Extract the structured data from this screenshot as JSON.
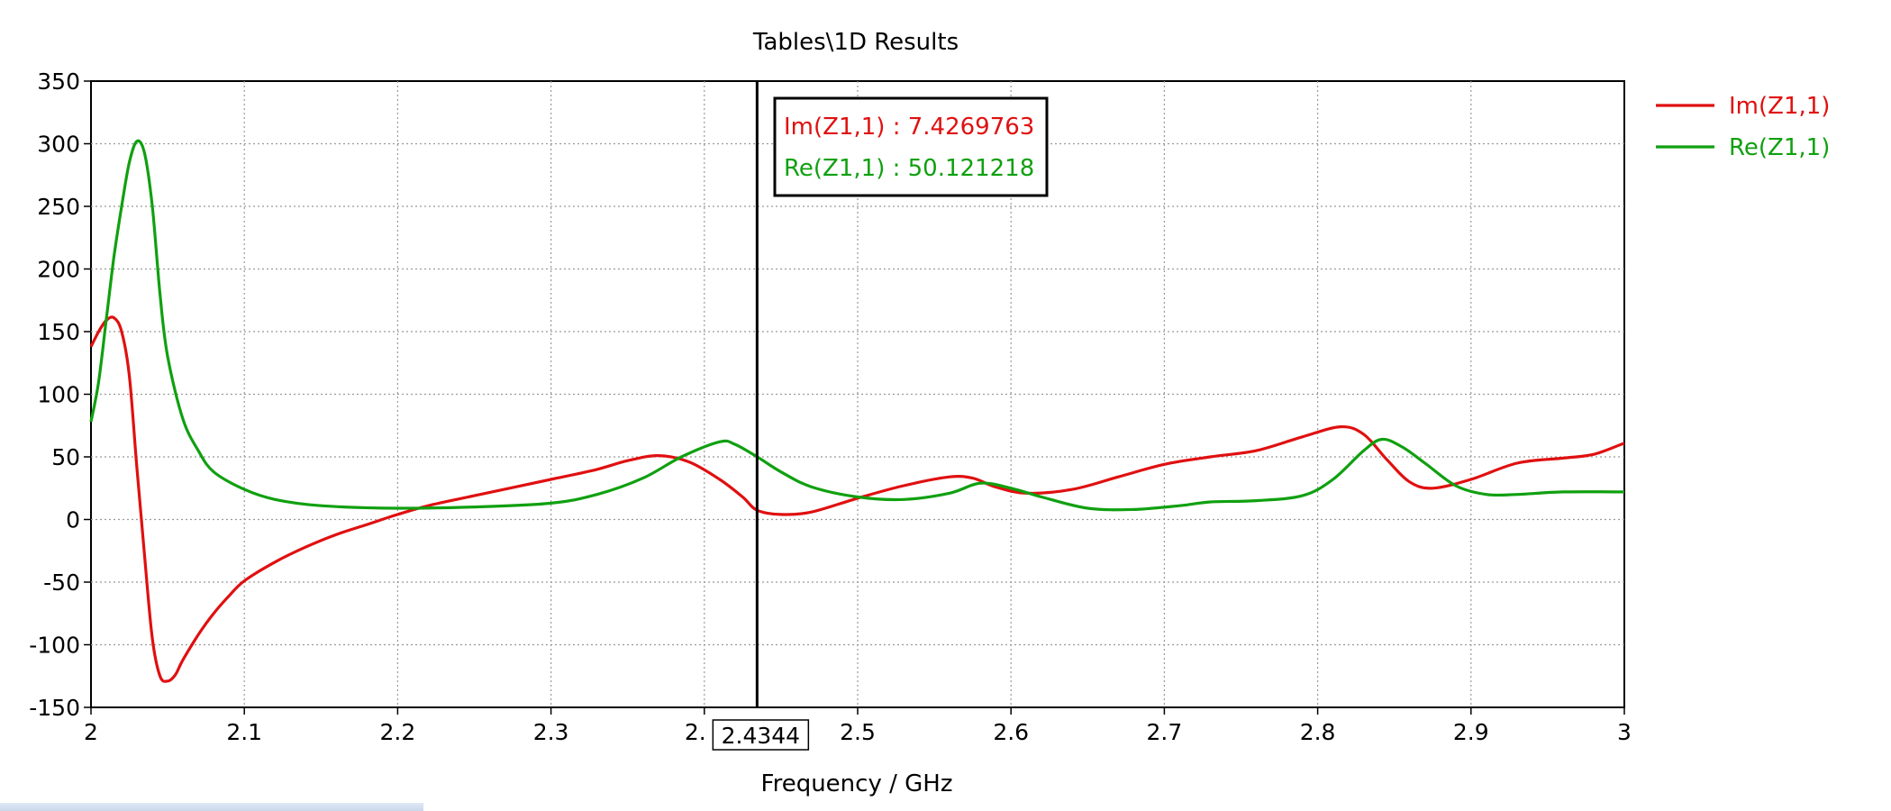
{
  "chart_data": {
    "type": "line",
    "title": "Tables\\1D Results",
    "xlabel": "Frequency / GHz",
    "ylabel": "",
    "xlim": [
      2,
      3
    ],
    "ylim": [
      -150,
      350
    ],
    "x_ticks": [
      "2",
      "2.1",
      "2.2",
      "2.3",
      "2.",
      "2.5",
      "2.6",
      "2.7",
      "2.8",
      "2.9",
      "3"
    ],
    "y_ticks": [
      "350",
      "300",
      "250",
      "200",
      "150",
      "100",
      "50",
      "0",
      "-50",
      "-100",
      "-150"
    ],
    "grid": true,
    "legend_position": "right",
    "marker": {
      "x": 2.4344,
      "label": "2.4344",
      "readouts": [
        {
          "text": "Im(Z1,1) : 7.4269763",
          "color": "#e01010"
        },
        {
          "text": "Re(Z1,1) : 50.121218",
          "color": "#10a010"
        }
      ]
    },
    "series": [
      {
        "name": "Im(Z1,1)",
        "color": "#e01010",
        "points": [
          [
            2.0,
            138
          ],
          [
            2.005,
            150
          ],
          [
            2.01,
            159
          ],
          [
            2.015,
            161
          ],
          [
            2.02,
            150
          ],
          [
            2.025,
            115
          ],
          [
            2.03,
            40
          ],
          [
            2.035,
            -30
          ],
          [
            2.04,
            -95
          ],
          [
            2.045,
            -125
          ],
          [
            2.05,
            -129
          ],
          [
            2.055,
            -124
          ],
          [
            2.06,
            -112
          ],
          [
            2.07,
            -92
          ],
          [
            2.08,
            -75
          ],
          [
            2.09,
            -61
          ],
          [
            2.1,
            -49
          ],
          [
            2.12,
            -34
          ],
          [
            2.14,
            -22
          ],
          [
            2.16,
            -12
          ],
          [
            2.18,
            -4
          ],
          [
            2.2,
            4
          ],
          [
            2.22,
            11
          ],
          [
            2.25,
            19
          ],
          [
            2.3,
            32
          ],
          [
            2.33,
            40
          ],
          [
            2.35,
            47
          ],
          [
            2.37,
            51
          ],
          [
            2.39,
            46
          ],
          [
            2.41,
            32
          ],
          [
            2.425,
            18
          ],
          [
            2.4344,
            7.4
          ],
          [
            2.45,
            4
          ],
          [
            2.47,
            6
          ],
          [
            2.5,
            17
          ],
          [
            2.53,
            27
          ],
          [
            2.56,
            34
          ],
          [
            2.575,
            33
          ],
          [
            2.59,
            26
          ],
          [
            2.61,
            21
          ],
          [
            2.64,
            24
          ],
          [
            2.67,
            34
          ],
          [
            2.7,
            44
          ],
          [
            2.73,
            50
          ],
          [
            2.76,
            55
          ],
          [
            2.79,
            66
          ],
          [
            2.815,
            74
          ],
          [
            2.83,
            68
          ],
          [
            2.845,
            48
          ],
          [
            2.86,
            30
          ],
          [
            2.875,
            25
          ],
          [
            2.9,
            32
          ],
          [
            2.93,
            45
          ],
          [
            2.96,
            49
          ],
          [
            2.98,
            52
          ],
          [
            3.0,
            61
          ]
        ]
      },
      {
        "name": "Re(Z1,1)",
        "color": "#10a010",
        "points": [
          [
            2.0,
            78
          ],
          [
            2.005,
            110
          ],
          [
            2.01,
            160
          ],
          [
            2.015,
            210
          ],
          [
            2.02,
            250
          ],
          [
            2.025,
            285
          ],
          [
            2.03,
            302
          ],
          [
            2.035,
            292
          ],
          [
            2.04,
            250
          ],
          [
            2.045,
            180
          ],
          [
            2.05,
            130
          ],
          [
            2.06,
            80
          ],
          [
            2.07,
            55
          ],
          [
            2.08,
            38
          ],
          [
            2.1,
            24
          ],
          [
            2.12,
            16
          ],
          [
            2.15,
            11
          ],
          [
            2.2,
            9
          ],
          [
            2.25,
            10
          ],
          [
            2.3,
            13
          ],
          [
            2.33,
            20
          ],
          [
            2.36,
            33
          ],
          [
            2.385,
            50
          ],
          [
            2.41,
            62
          ],
          [
            2.42,
            60
          ],
          [
            2.4344,
            50.1
          ],
          [
            2.45,
            38
          ],
          [
            2.47,
            26
          ],
          [
            2.5,
            18
          ],
          [
            2.53,
            16
          ],
          [
            2.56,
            21
          ],
          [
            2.58,
            29
          ],
          [
            2.6,
            25
          ],
          [
            2.62,
            18
          ],
          [
            2.65,
            9
          ],
          [
            2.68,
            8
          ],
          [
            2.71,
            11
          ],
          [
            2.73,
            14
          ],
          [
            2.76,
            15
          ],
          [
            2.79,
            19
          ],
          [
            2.81,
            32
          ],
          [
            2.83,
            55
          ],
          [
            2.842,
            64
          ],
          [
            2.855,
            58
          ],
          [
            2.87,
            45
          ],
          [
            2.89,
            27
          ],
          [
            2.91,
            20
          ],
          [
            2.93,
            20
          ],
          [
            2.96,
            22
          ],
          [
            3.0,
            22
          ]
        ]
      }
    ]
  }
}
